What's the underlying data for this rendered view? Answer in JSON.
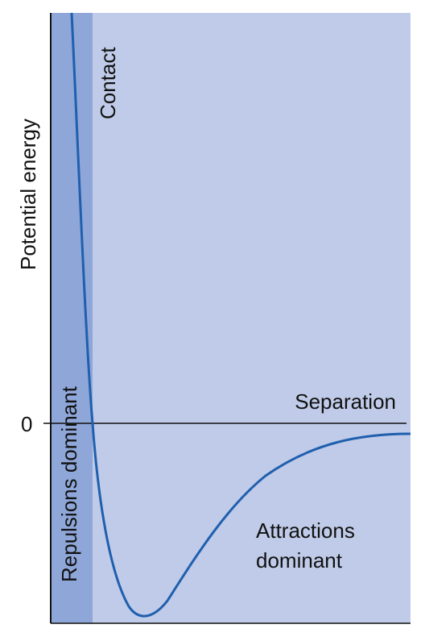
{
  "labels": {
    "y_axis": "Potential energy",
    "x_axis": "Separation",
    "zero": "0",
    "contact": "Contact",
    "repulsions": "Repulsions dominant",
    "attractions_line1": "Attractions",
    "attractions_line2": "dominant"
  },
  "colors": {
    "background_region": "#bfcbe8",
    "repulsion_band": "#8ea6d8",
    "curve": "#1f5fae",
    "axis": "#111111"
  }
}
